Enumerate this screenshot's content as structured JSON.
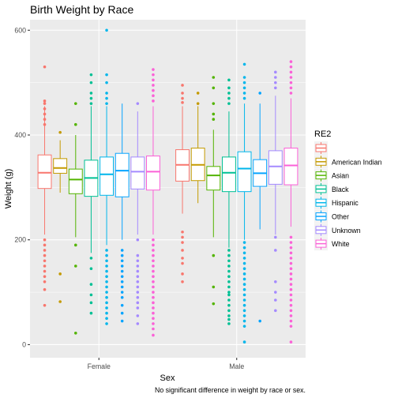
{
  "chart_data": {
    "type": "boxplot",
    "title": "Birth Weight by Race",
    "xlabel": "Sex",
    "ylabel": "Weight (g)",
    "caption": "No significant difference in weight by race or sex.",
    "categories": [
      "Female",
      "Male"
    ],
    "ylim": [
      -25,
      620
    ],
    "yticks": [
      0,
      200,
      400,
      600
    ],
    "grid": true,
    "legend": {
      "title": "RE2",
      "position": "right"
    },
    "series": [
      {
        "name": "",
        "color": "#F8766D",
        "boxes": [
          {
            "category": "Female",
            "lower_whisker": 210,
            "q1": 298,
            "median": 328,
            "q3": 362,
            "upper_whisker": 455,
            "outliers": [
              530,
              465,
              460,
              450,
              440,
              430,
              420,
              200,
              190,
              180,
              170,
              160,
              150,
              140,
              130,
              120,
              105,
              75
            ]
          },
          {
            "category": "Male",
            "lower_whisker": 250,
            "q1": 312,
            "median": 343,
            "q3": 372,
            "upper_whisker": 455,
            "outliers": [
              495,
              480,
              470,
              462,
              215,
              205,
              195,
              180,
              165,
              155,
              135,
              120
            ]
          }
        ]
      },
      {
        "name": "American Indian",
        "color": "#C49A00",
        "boxes": [
          {
            "category": "Female",
            "lower_whisker": 290,
            "q1": 327,
            "median": 337,
            "q3": 355,
            "upper_whisker": 390,
            "outliers": [
              405,
              135,
              82
            ]
          },
          {
            "category": "Male",
            "lower_whisker": 270,
            "q1": 313,
            "median": 343,
            "q3": 375,
            "upper_whisker": 455,
            "outliers": [
              480,
              460
            ]
          }
        ]
      },
      {
        "name": "Asian",
        "color": "#53B400",
        "boxes": [
          {
            "category": "Female",
            "lower_whisker": 205,
            "q1": 288,
            "median": 315,
            "q3": 335,
            "upper_whisker": 400,
            "outliers": [
              460,
              420,
              190,
              150,
              22
            ]
          },
          {
            "category": "Male",
            "lower_whisker": 205,
            "q1": 295,
            "median": 323,
            "q3": 340,
            "upper_whisker": 410,
            "outliers": [
              510,
              490,
              460,
              440,
              430,
              170,
              110,
              78
            ]
          }
        ]
      },
      {
        "name": "Black",
        "color": "#00C094",
        "boxes": [
          {
            "category": "Female",
            "lower_whisker": 175,
            "q1": 283,
            "median": 318,
            "q3": 352,
            "upper_whisker": 455,
            "outliers": [
              515,
              500,
              480,
              470,
              460,
              165,
              145,
              115,
              95,
              80,
              60
            ]
          },
          {
            "category": "Male",
            "lower_whisker": 185,
            "q1": 292,
            "median": 328,
            "q3": 358,
            "upper_whisker": 445,
            "outliers": [
              505,
              490,
              480,
              470,
              460,
              180,
              170,
              160,
              150,
              140,
              130,
              120,
              110,
              100,
              95,
              85,
              75,
              65,
              55,
              48,
              40
            ]
          }
        ]
      },
      {
        "name": "Hispanic",
        "color": "#00B6EB",
        "boxes": [
          {
            "category": "Female",
            "lower_whisker": 190,
            "q1": 285,
            "median": 325,
            "q3": 358,
            "upper_whisker": 455,
            "outliers": [
              600,
              515,
              500,
              480,
              470,
              460,
              180,
              170,
              160,
              150,
              140,
              130,
              120,
              110,
              100,
              90,
              80,
              70,
              60,
              50,
              40
            ]
          },
          {
            "category": "Male",
            "lower_whisker": 200,
            "q1": 292,
            "median": 336,
            "q3": 368,
            "upper_whisker": 460,
            "outliers": [
              535,
              510,
              500,
              490,
              480,
              470,
              195,
              185,
              175,
              165,
              155,
              145,
              135,
              125,
              115,
              105,
              95,
              85,
              75,
              65,
              55,
              45,
              35,
              5
            ]
          }
        ]
      },
      {
        "name": "Other",
        "color": "#06A4FF",
        "boxes": [
          {
            "category": "Female",
            "lower_whisker": 200,
            "q1": 282,
            "median": 332,
            "q3": 365,
            "upper_whisker": 460,
            "outliers": [
              180,
              170,
              160,
              150,
              140,
              130,
              120,
              110,
              100,
              90,
              75,
              60,
              45
            ]
          },
          {
            "category": "Male",
            "lower_whisker": 220,
            "q1": 302,
            "median": 327,
            "q3": 353,
            "upper_whisker": 460,
            "outliers": [
              480,
              45
            ]
          }
        ]
      },
      {
        "name": "Unknown",
        "color": "#A58AFF",
        "boxes": [
          {
            "category": "Female",
            "lower_whisker": 210,
            "q1": 297,
            "median": 330,
            "q3": 358,
            "upper_whisker": 445,
            "outliers": [
              460,
              200,
              170,
              160,
              150,
              140,
              130,
              120,
              110,
              100,
              90,
              80,
              70,
              55,
              40
            ]
          },
          {
            "category": "Male",
            "lower_whisker": 210,
            "q1": 306,
            "median": 340,
            "q3": 370,
            "upper_whisker": 475,
            "outliers": [
              520,
              510,
              500,
              490,
              205,
              180,
              120,
              100,
              85,
              65
            ]
          }
        ]
      },
      {
        "name": "White",
        "color": "#FB61D7",
        "boxes": [
          {
            "category": "Female",
            "lower_whisker": 210,
            "q1": 295,
            "median": 330,
            "q3": 360,
            "upper_whisker": 455,
            "outliers": [
              525,
              515,
              505,
              495,
              485,
              475,
              465,
              200,
              190,
              180,
              170,
              160,
              150,
              140,
              130,
              120,
              110,
              100,
              90,
              80,
              70,
              60,
              50,
              40,
              30,
              18
            ]
          },
          {
            "category": "Male",
            "lower_whisker": 225,
            "q1": 305,
            "median": 342,
            "q3": 375,
            "upper_whisker": 470,
            "outliers": [
              540,
              530,
              520,
              510,
              500,
              490,
              480,
              205,
              195,
              185,
              175,
              165,
              155,
              145,
              135,
              125,
              115,
              105,
              95,
              85,
              75,
              65,
              55,
              45,
              35,
              5
            ]
          }
        ]
      }
    ]
  }
}
